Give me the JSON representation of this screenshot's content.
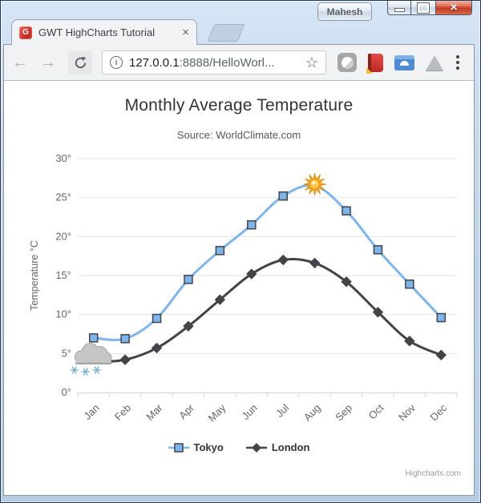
{
  "titlebar": {
    "profile_name": "Mahesh",
    "close_glyph": "×"
  },
  "tab": {
    "title": "GWT HighCharts Tutorial",
    "close_glyph": "×",
    "favicon_letter": "G"
  },
  "toolbar": {
    "url_host": "127.0.0.1",
    "url_rest": ":8888/HelloWorl...",
    "icons": {
      "back": "←",
      "forward": "→",
      "bookmark_star": "☆",
      "info_letter": "i"
    }
  },
  "chart_data": {
    "type": "line",
    "smooth": true,
    "title": "Monthly Average Temperature",
    "subtitle": "Source: WorldClimate.com",
    "xlabel": "",
    "ylabel": "Temperature °C",
    "categories": [
      "Jan",
      "Feb",
      "Mar",
      "Apr",
      "May",
      "Jun",
      "Jul",
      "Aug",
      "Sep",
      "Oct",
      "Nov",
      "Dec"
    ],
    "series": [
      {
        "name": "Tokyo",
        "color": "#7cb5ec",
        "marker": "square",
        "values": [
          7.0,
          6.9,
          9.5,
          14.5,
          18.2,
          21.5,
          25.2,
          26.5,
          23.3,
          18.3,
          13.9,
          9.6
        ]
      },
      {
        "name": "London",
        "color": "#434348",
        "marker": "diamond",
        "values": [
          3.9,
          4.2,
          5.7,
          8.5,
          11.9,
          15.2,
          17.0,
          16.6,
          14.2,
          10.3,
          6.6,
          4.8
        ]
      }
    ],
    "ylim": [
      0,
      30
    ],
    "yticks": [
      0,
      5,
      10,
      15,
      20,
      25,
      30
    ],
    "ytick_suffix": "°",
    "grid": true,
    "legend_position": "bottom",
    "annotations": [
      {
        "type": "sun",
        "series": "Tokyo",
        "index": 7
      },
      {
        "type": "snow-cloud",
        "series": "London",
        "index": 0
      }
    ],
    "credit": "Highcharts.com",
    "colors": {
      "grid": "#e6e6e6",
      "axis_line": "#ccd6eb",
      "tick_text": "#666666",
      "marker_stroke": "#434348",
      "title": "#333333",
      "subtitle": "#555555"
    }
  }
}
